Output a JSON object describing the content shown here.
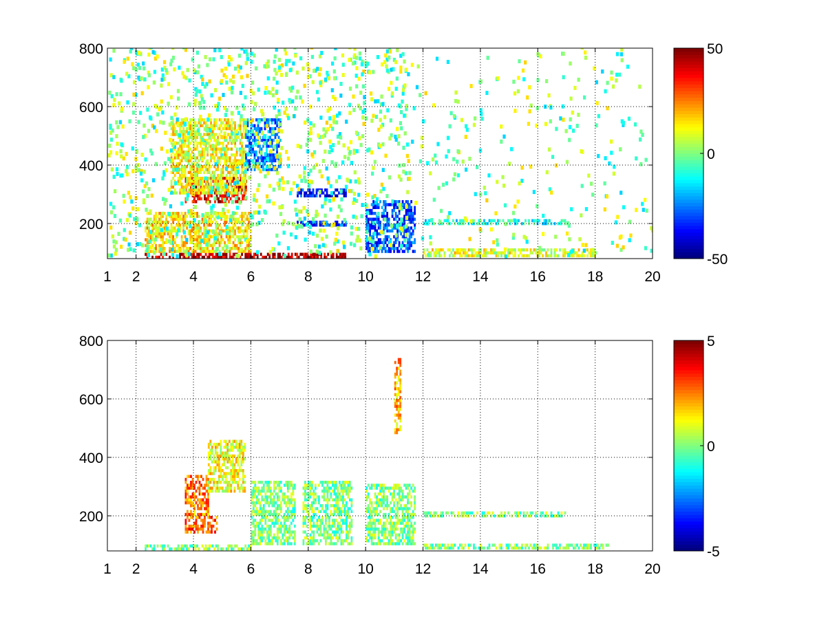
{
  "chart_data": [
    {
      "type": "heatmap",
      "title": "",
      "xlabel": "",
      "ylabel": "",
      "xlim": [
        1,
        20
      ],
      "ylim": [
        80,
        800
      ],
      "xticks": [
        1,
        2,
        4,
        6,
        8,
        10,
        12,
        14,
        16,
        18,
        20
      ],
      "yticks": [
        200,
        400,
        600,
        800
      ],
      "grid": true,
      "colormap": "jet",
      "clim": [
        -50,
        50
      ],
      "colorbar_ticks": [
        50,
        0,
        -50
      ],
      "sparse_background": "white",
      "features": [
        {
          "x": [
            3.7,
            5.8
          ],
          "y": [
            270,
            360
          ],
          "value": 40,
          "note": "curved ridge"
        },
        {
          "x": [
            3.2,
            5.8
          ],
          "y": [
            300,
            560
          ],
          "value": 12
        },
        {
          "x": [
            5.8,
            7.0
          ],
          "y": [
            380,
            560
          ],
          "value": -25
        },
        {
          "x": [
            2.3,
            9.3
          ],
          "y": [
            80,
            100
          ],
          "value": 45
        },
        {
          "x": [
            2.3,
            6.0
          ],
          "y": [
            100,
            240
          ],
          "value": 15
        },
        {
          "x": [
            7.6,
            9.3
          ],
          "y": [
            290,
            320
          ],
          "value": -35
        },
        {
          "x": [
            7.6,
            9.3
          ],
          "y": [
            190,
            210
          ],
          "value": -30
        },
        {
          "x": [
            10.0,
            11.7
          ],
          "y": [
            100,
            280
          ],
          "value": -30
        },
        {
          "x": [
            12.0,
            17.0
          ],
          "y": [
            195,
            210
          ],
          "value": -10
        },
        {
          "x": [
            12.0,
            18.0
          ],
          "y": [
            85,
            110
          ],
          "value": 10
        }
      ]
    },
    {
      "type": "heatmap",
      "title": "",
      "xlabel": "",
      "ylabel": "",
      "xlim": [
        1,
        20
      ],
      "ylim": [
        80,
        800
      ],
      "xticks": [
        1,
        2,
        4,
        6,
        8,
        10,
        12,
        14,
        16,
        18,
        20
      ],
      "yticks": [
        200,
        400,
        600,
        800
      ],
      "grid": true,
      "colormap": "jet",
      "clim": [
        -5,
        5
      ],
      "colorbar_ticks": [
        5,
        0,
        -5
      ],
      "sparse_background": "white",
      "features": [
        {
          "x": [
            3.7,
            4.5
          ],
          "y": [
            200,
            340
          ],
          "value": 2.5
        },
        {
          "x": [
            4.5,
            5.8
          ],
          "y": [
            280,
            460
          ],
          "value": 1.2
        },
        {
          "x": [
            3.7,
            4.8
          ],
          "y": [
            140,
            200
          ],
          "value": 3
        },
        {
          "x": [
            2.3,
            6.0
          ],
          "y": [
            82,
            100
          ],
          "value": 0
        },
        {
          "x": [
            6.0,
            7.5
          ],
          "y": [
            100,
            320
          ],
          "value": 0
        },
        {
          "x": [
            7.8,
            9.5
          ],
          "y": [
            100,
            320
          ],
          "value": 0
        },
        {
          "x": [
            10.0,
            11.7
          ],
          "y": [
            100,
            310
          ],
          "value": 0
        },
        {
          "x": [
            12.0,
            18.5
          ],
          "y": [
            85,
            100
          ],
          "value": 0
        },
        {
          "x": [
            12.0,
            17.0
          ],
          "y": [
            195,
            210
          ],
          "value": 0
        },
        {
          "x": [
            11.0,
            11.2
          ],
          "y": [
            480,
            740
          ],
          "value": 2
        }
      ]
    }
  ]
}
